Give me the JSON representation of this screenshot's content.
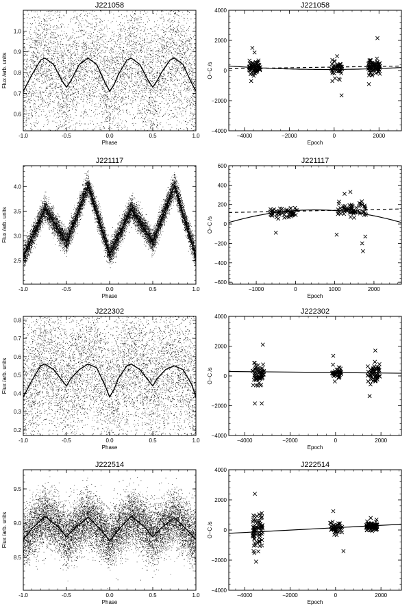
{
  "figure": {
    "background": "#ffffff",
    "ink": "#000000"
  },
  "chart_data": [
    {
      "id": "lc-j221058",
      "type": "scatter",
      "title": "J221058",
      "xlabel": "Phase",
      "ylabel": "Flux /arb. units",
      "xlim": [
        -1.0,
        1.0
      ],
      "ylim": [
        0.52,
        1.1
      ],
      "xticks": [
        -1.0,
        -0.5,
        0.0,
        0.5,
        1.0
      ],
      "xticklabels": [
        "-1.0",
        "-0.5",
        "0.0",
        "0.5",
        "1.0"
      ],
      "yticks": [
        0.6,
        0.7,
        0.8,
        0.9,
        1.0
      ],
      "yticklabels": [
        "0.6",
        "0.7",
        "0.8",
        "0.9",
        "1.0"
      ],
      "series": [
        {
          "style": "points",
          "count": 6000,
          "spread": 0.16
        },
        {
          "style": "line",
          "x": [
            -1.0,
            -0.9,
            -0.8,
            -0.75,
            -0.65,
            -0.55,
            -0.5,
            -0.45,
            -0.35,
            -0.25,
            -0.15,
            -0.05,
            0.0,
            0.05,
            0.1,
            0.2,
            0.25,
            0.35,
            0.45,
            0.5,
            0.55,
            0.6,
            0.7,
            0.75,
            0.85,
            0.95,
            1.0
          ],
          "y": [
            0.71,
            0.79,
            0.86,
            0.87,
            0.84,
            0.76,
            0.73,
            0.76,
            0.84,
            0.87,
            0.84,
            0.75,
            0.71,
            0.74,
            0.79,
            0.86,
            0.87,
            0.84,
            0.76,
            0.73,
            0.76,
            0.8,
            0.86,
            0.87,
            0.84,
            0.75,
            0.71
          ]
        }
      ]
    },
    {
      "id": "oc-j221058",
      "type": "scatter",
      "title": "J221058",
      "xlabel": "Epoch",
      "ylabel": "O−C /s",
      "xlim": [
        -4700,
        3000
      ],
      "ylim": [
        -4000,
        4000
      ],
      "xticks": [
        -4000,
        -2000,
        0,
        2000
      ],
      "xticklabels": [
        "−4000",
        "−2000",
        "0",
        "2000"
      ],
      "yticks": [
        -4000,
        -2000,
        0,
        2000,
        4000
      ],
      "yticklabels": [
        "−4000",
        "−2000",
        "0",
        "2000",
        "4000"
      ],
      "clusters": [
        {
          "x_range": [
            -3800,
            -3300
          ],
          "n": 65,
          "y_center": 200,
          "y_spread": 380
        },
        {
          "x_range": [
            -150,
            350
          ],
          "n": 45,
          "y_center": 150,
          "y_spread": 450
        },
        {
          "x_range": [
            1500,
            2050
          ],
          "n": 75,
          "y_center": 250,
          "y_spread": 420
        }
      ],
      "extra_points": [
        [
          -3650,
          1500
        ],
        [
          -3550,
          1200
        ],
        [
          330,
          -1650
        ],
        [
          1930,
          2150
        ],
        [
          130,
          950
        ],
        [
          -80,
          -700
        ],
        [
          1550,
          -900
        ],
        [
          -3700,
          -700
        ],
        [
          -80,
          700
        ]
      ],
      "fit_curve": {
        "style": "solid",
        "a": 1.2e-05,
        "x0": -300,
        "c": 70
      },
      "fit_line": {
        "style": "dashed",
        "x": [
          -4700,
          3000
        ],
        "y": [
          120,
          300
        ]
      }
    },
    {
      "id": "lc-j221117",
      "type": "scatter",
      "title": "J221117",
      "xlabel": "Phase",
      "ylabel": "Flux /arb. units",
      "xlim": [
        -1.0,
        1.0
      ],
      "ylim": [
        2.02,
        4.42
      ],
      "xticks": [
        -1.0,
        -0.5,
        0.0,
        0.5,
        1.0
      ],
      "xticklabels": [
        "-1.0",
        "-0.5",
        "0.0",
        "0.5",
        "1.0"
      ],
      "yticks": [
        2.5,
        3.0,
        3.5,
        4.0
      ],
      "yticklabels": [
        "2.5",
        "3.0",
        "3.5",
        "4.0"
      ],
      "series": [
        {
          "style": "points",
          "count": 14000,
          "spread": 0.11
        },
        {
          "style": "line",
          "x": [
            -1.0,
            -0.75,
            -0.5,
            -0.25,
            0.0,
            0.25,
            0.5,
            0.75,
            1.0
          ],
          "y": [
            2.57,
            3.55,
            2.87,
            4.02,
            2.62,
            3.55,
            2.87,
            4.02,
            2.57
          ]
        }
      ]
    },
    {
      "id": "oc-j221117",
      "type": "scatter",
      "title": "J221117",
      "xlabel": "Epoch",
      "ylabel": "O−C /s",
      "xlim": [
        -1700,
        2700
      ],
      "ylim": [
        -620,
        600
      ],
      "xticks": [
        -1000,
        0,
        1000,
        2000
      ],
      "xticklabels": [
        "−1000",
        "0",
        "1000",
        "2000"
      ],
      "yticks": [
        -600,
        -400,
        -200,
        0,
        200,
        400,
        600
      ],
      "yticklabels": [
        "−600",
        "−400",
        "−200",
        "0",
        "200",
        "400",
        "600"
      ],
      "clusters": [
        {
          "x_range": [
            -650,
            50
          ],
          "n": 55,
          "y_center": 110,
          "y_spread": 65
        },
        {
          "x_range": [
            1050,
            1800
          ],
          "n": 65,
          "y_center": 150,
          "y_spread": 75
        }
      ],
      "extra_points": [
        [
          -500,
          -90
        ],
        [
          1050,
          -110
        ],
        [
          1700,
          -200
        ],
        [
          1720,
          -280
        ],
        [
          1780,
          -130
        ],
        [
          1400,
          330
        ],
        [
          1250,
          310
        ]
      ],
      "fit_curve": {
        "style": "solid",
        "a": -2.7e-05,
        "x0": 500,
        "c": 145
      },
      "fit_line": {
        "style": "dashed",
        "x": [
          -1700,
          2700
        ],
        "y": [
          118,
          155
        ]
      }
    },
    {
      "id": "lc-j222302",
      "type": "scatter",
      "title": "J222302",
      "xlabel": "Phase",
      "ylabel": "Flux /arb. units",
      "xlim": [
        -1.0,
        1.0
      ],
      "ylim": [
        0.17,
        0.82
      ],
      "xticks": [
        -1.0,
        -0.5,
        0.0,
        0.5,
        1.0
      ],
      "xticklabels": [
        "-1.0",
        "-0.5",
        "0.0",
        "0.5",
        "1.0"
      ],
      "yticks": [
        0.2,
        0.3,
        0.4,
        0.5,
        0.6,
        0.7,
        0.8
      ],
      "yticklabels": [
        "0.2",
        "0.3",
        "0.4",
        "0.5",
        "0.6",
        "0.7",
        "0.8"
      ],
      "series": [
        {
          "style": "points",
          "count": 6500,
          "spread": 0.19
        },
        {
          "style": "line",
          "x": [
            -1.0,
            -0.9,
            -0.8,
            -0.75,
            -0.65,
            -0.55,
            -0.5,
            -0.45,
            -0.35,
            -0.25,
            -0.15,
            -0.05,
            0.0,
            0.05,
            0.1,
            0.2,
            0.25,
            0.35,
            0.45,
            0.5,
            0.55,
            0.65,
            0.75,
            0.85,
            0.95,
            1.0
          ],
          "y": [
            0.38,
            0.47,
            0.55,
            0.56,
            0.53,
            0.47,
            0.44,
            0.48,
            0.53,
            0.56,
            0.54,
            0.44,
            0.38,
            0.42,
            0.48,
            0.55,
            0.56,
            0.53,
            0.47,
            0.44,
            0.48,
            0.53,
            0.55,
            0.53,
            0.45,
            0.38
          ]
        }
      ]
    },
    {
      "id": "oc-j222302",
      "type": "scatter",
      "title": "J222302",
      "xlabel": "Epoch",
      "ylabel": "O−C /s",
      "xlim": [
        -4700,
        2900
      ],
      "ylim": [
        -4000,
        4000
      ],
      "xticks": [
        -4000,
        -2000,
        0,
        2000
      ],
      "xticklabels": [
        "−4000",
        "−2000",
        "0",
        "2000"
      ],
      "yticks": [
        -4000,
        -2000,
        0,
        2000,
        4000
      ],
      "yticklabels": [
        "−4000",
        "−2000",
        "0",
        "2000",
        "4000"
      ],
      "clusters": [
        {
          "x_range": [
            -3650,
            -3150
          ],
          "n": 60,
          "y_center": 100,
          "y_spread": 700
        },
        {
          "x_range": [
            -150,
            250
          ],
          "n": 40,
          "y_center": 200,
          "y_spread": 350
        },
        {
          "x_range": [
            1400,
            1950
          ],
          "n": 60,
          "y_center": 150,
          "y_spread": 550
        }
      ],
      "extra_points": [
        [
          -3200,
          2100
        ],
        [
          -3550,
          -1850
        ],
        [
          -3250,
          -1850
        ],
        [
          -100,
          1350
        ],
        [
          1750,
          1700
        ],
        [
          1500,
          -1350
        ]
      ],
      "fit_line": {
        "style": "solid",
        "x": [
          -4700,
          2900
        ],
        "y": [
          300,
          180
        ]
      }
    },
    {
      "id": "lc-j222514",
      "type": "scatter",
      "title": "J222514",
      "xlabel": "Phase",
      "ylabel": "Flux /arb. units",
      "xlim": [
        -1.0,
        1.0
      ],
      "ylim": [
        8.02,
        9.78
      ],
      "xticks": [
        -1.0,
        -0.5,
        0.0,
        0.5,
        1.0
      ],
      "xticklabels": [
        "-1.0",
        "-0.5",
        "0.0",
        "0.5",
        "1.0"
      ],
      "yticks": [
        8.5,
        9.0,
        9.5
      ],
      "yticklabels": [
        "8.5",
        "9.0",
        "9.5"
      ],
      "series": [
        {
          "style": "points",
          "count": 11000,
          "spread": 0.2
        },
        {
          "style": "line",
          "x": [
            -1.0,
            -0.9,
            -0.75,
            -0.6,
            -0.5,
            -0.4,
            -0.25,
            -0.1,
            0.0,
            0.1,
            0.25,
            0.4,
            0.5,
            0.6,
            0.75,
            0.9,
            1.0
          ],
          "y": [
            8.76,
            8.92,
            9.1,
            8.95,
            8.8,
            8.93,
            9.09,
            8.9,
            8.74,
            8.9,
            9.1,
            8.95,
            8.8,
            8.93,
            9.08,
            8.9,
            8.76
          ]
        }
      ]
    },
    {
      "id": "oc-j222514",
      "type": "scatter",
      "title": "J222514",
      "xlabel": "Epoch",
      "ylabel": "O−C /s",
      "xlim": [
        -4700,
        2900
      ],
      "ylim": [
        -4000,
        4000
      ],
      "xticks": [
        -4000,
        -2000,
        0,
        2000
      ],
      "xticklabels": [
        "−4000",
        "−2000",
        "0",
        "2000"
      ],
      "yticks": [
        -4000,
        -2000,
        0,
        2000,
        4000
      ],
      "yticklabels": [
        "−4000",
        "−2000",
        "0",
        "2000",
        "4000"
      ],
      "clusters": [
        {
          "x_range": [
            -3650,
            -3200
          ],
          "n": 75,
          "y_center": -100,
          "y_spread": 1050
        },
        {
          "x_range": [
            -250,
            300
          ],
          "n": 45,
          "y_center": 100,
          "y_spread": 450
        },
        {
          "x_range": [
            1350,
            1850
          ],
          "n": 70,
          "y_center": 250,
          "y_spread": 280
        }
      ],
      "extra_points": [
        [
          -3550,
          2400
        ],
        [
          -3500,
          -2100
        ],
        [
          -100,
          1250
        ],
        [
          350,
          -1400
        ],
        [
          1550,
          800
        ]
      ],
      "fit_line": {
        "style": "solid",
        "x": [
          -4700,
          2900
        ],
        "y": [
          -220,
          380
        ]
      }
    }
  ]
}
